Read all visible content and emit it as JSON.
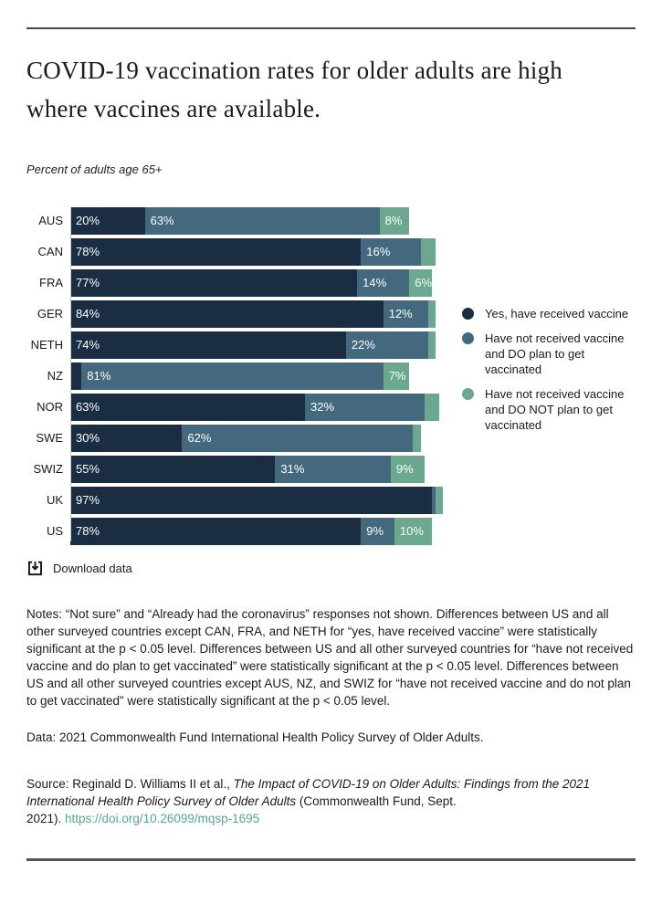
{
  "page": {
    "title": "COVID-19 vaccination rates for older adults are high where vaccines are available.",
    "subtitle": "Percent of adults age 65+"
  },
  "chart_data": {
    "type": "bar",
    "orientation": "horizontal",
    "stacked": true,
    "title": "COVID-19 vaccination rates for older adults are high where vaccines are available.",
    "xlabel": "Percent of adults age 65+",
    "xlim": [
      0,
      100
    ],
    "grid": false,
    "legend_position": "right",
    "value_suffix": "%",
    "label_min_value": 6,
    "categories": [
      "AUS",
      "CAN",
      "FRA",
      "GER",
      "NETH",
      "NZ",
      "NOR",
      "SWE",
      "SWIZ",
      "UK",
      "US"
    ],
    "series": [
      {
        "name": "Yes, have received vaccine",
        "color": "#1b2d43",
        "values": [
          20,
          78,
          77,
          84,
          74,
          3,
          63,
          30,
          55,
          97,
          78
        ]
      },
      {
        "name": "Have not received vaccine and DO plan to get vaccinated",
        "color": "#44697f",
        "values": [
          63,
          16,
          14,
          12,
          22,
          81,
          32,
          62,
          31,
          1,
          9
        ]
      },
      {
        "name": "Have not received vaccine and DO NOT plan to get vaccinated",
        "color": "#6ca890",
        "values": [
          8,
          4,
          6,
          2,
          2,
          7,
          4,
          2,
          9,
          2,
          10
        ]
      }
    ]
  },
  "download": {
    "label": "Download data"
  },
  "notes": "Notes: “Not sure” and “Already had the coronavirus” responses not shown. Differences between US and all other surveyed countries except CAN, FRA, and NETH for “yes, have received vaccine” were statistically significant at the p < 0.05 level. Differences between US and all other surveyed countries for “have not received vaccine and do plan to get vaccinated” were statistically significant at the p < 0.05 level. Differences between US and all other surveyed countries except AUS, NZ, and SWIZ for “have not received vaccine and do not plan to get vaccinated” were statistically significant at the p < 0.05 level.",
  "data_line": "Data: 2021 Commonwealth Fund International Health Policy Survey of Older Adults.",
  "source": {
    "prefix": "Source: Reginald D. Williams II et al., ",
    "italic": "The Impact of COVID-19 on Older Adults: Findings from the 2021 International Health Policy Survey of Older Adults",
    "suffix": " (Commonwealth Fund, Sept.\n2021). ",
    "link": "https://doi.org/10.26099/mqsp-1695"
  },
  "colors": {
    "received": "#1b2d43",
    "do_plan": "#44697f",
    "do_not_plan": "#6ca890",
    "link": "#57a593"
  }
}
